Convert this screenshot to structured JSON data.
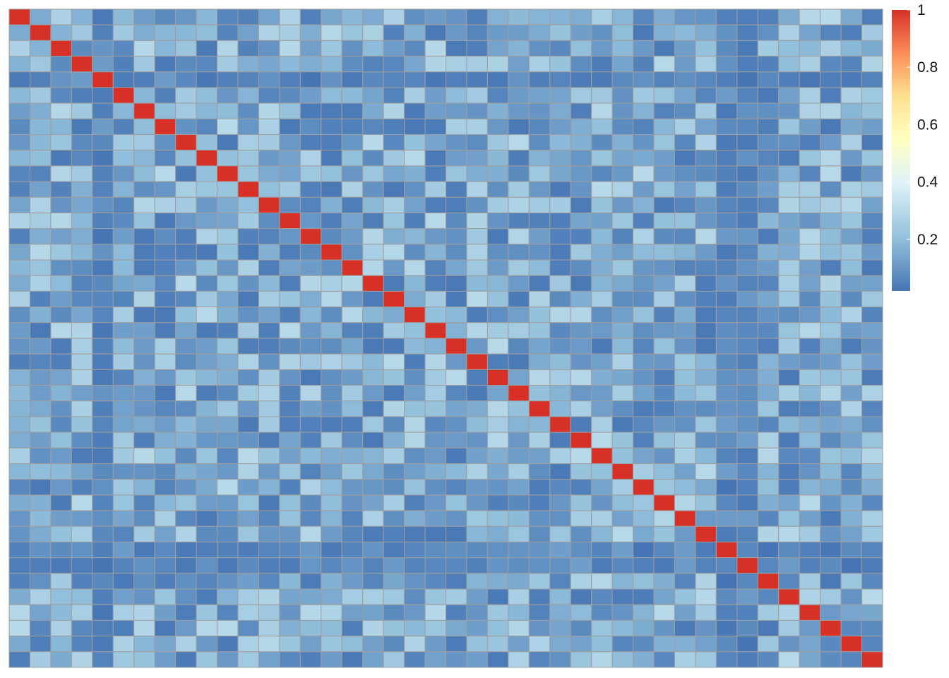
{
  "chart_data": {
    "type": "heatmap",
    "rows": 42,
    "cols": 42,
    "diagonal_value": 1,
    "value_range": [
      0.02,
      1
    ],
    "grid": true,
    "cell_border_color": "#9e9e9e",
    "legend": {
      "placement": "right",
      "ticks": [
        {
          "value": 1,
          "label": "1"
        },
        {
          "value": 0.8,
          "label": "0.8"
        },
        {
          "value": 0.6,
          "label": "0.6"
        },
        {
          "value": 0.4,
          "label": "0.4"
        },
        {
          "value": 0.2,
          "label": "0.2"
        }
      ]
    },
    "colorscale": [
      {
        "value": 0.02,
        "color": "#4575b4"
      },
      {
        "value": 0.2,
        "color": "#91bfdb"
      },
      {
        "value": 0.4,
        "color": "#e0f3f8"
      },
      {
        "value": 0.55,
        "color": "#ffffbf"
      },
      {
        "value": 0.7,
        "color": "#fee090"
      },
      {
        "value": 0.85,
        "color": "#fc8d59"
      },
      {
        "value": 1.0,
        "color": "#d73027"
      }
    ],
    "off_diagonal_typical_range": [
      0.03,
      0.3
    ],
    "low_correlation_rows": [
      4,
      34
    ],
    "low_correlation_cols": [
      4,
      35
    ]
  }
}
